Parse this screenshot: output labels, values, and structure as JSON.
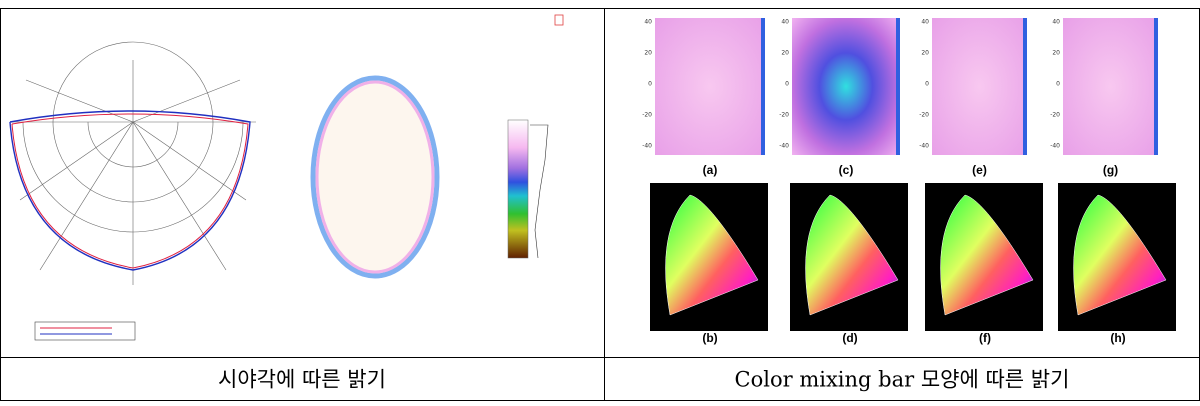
{
  "captions": [
    "시야각에 따른 밝기",
    "Color mixing bar 모양에 따른 밝기"
  ],
  "heatmap_labels": [
    "(a)",
    "(c)",
    "(e)",
    "(g)"
  ],
  "cie_labels": [
    "(b)",
    "(d)",
    "(f)",
    "(h)"
  ],
  "heatmap_ticks": [
    "40",
    "20",
    "0",
    "-20",
    "-40"
  ]
}
